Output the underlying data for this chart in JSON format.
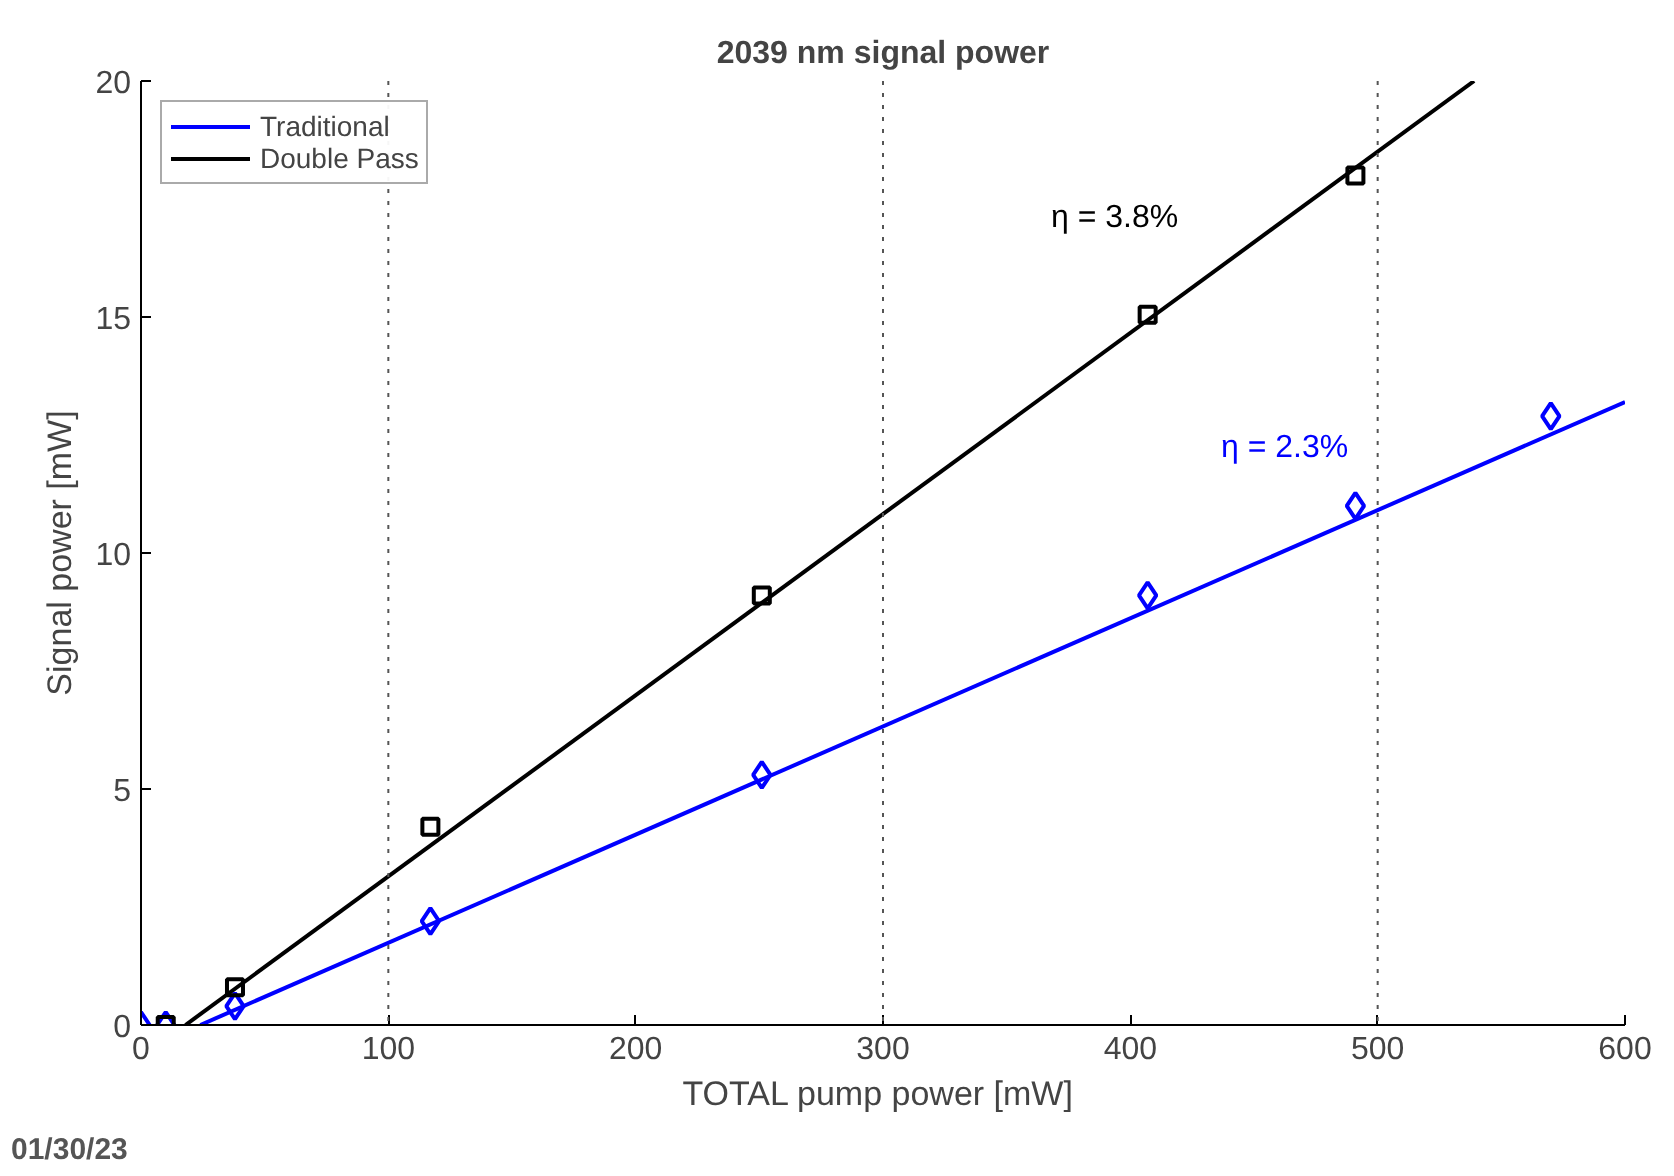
{
  "chart_data": {
    "type": "scatter",
    "title": "2039 nm signal power",
    "xlabel": "TOTAL pump power  [mW]",
    "ylabel": "Signal power [mW]",
    "xlim": [
      0,
      600
    ],
    "xticks": [
      0,
      100,
      200,
      300,
      400,
      500,
      600
    ],
    "ylim": [
      0,
      20
    ],
    "yticks": [
      0,
      5,
      10,
      15,
      20
    ],
    "grid": false,
    "legend": "top left",
    "series": [
      {
        "name": "Traditional",
        "type": "line",
        "color": "#0000ff",
        "marker": "none",
        "line_style": "solid",
        "x": [
          24,
          600
        ],
        "values": [
          0,
          13.2
        ]
      },
      {
        "name": "Double Pass",
        "type": "line",
        "color": "#000000",
        "marker": "none",
        "line_style": "solid",
        "x": [
          18,
          539
        ],
        "values": [
          0,
          20
        ]
      },
      {
        "color": "#0000ff",
        "marker": "diamond",
        "x": [
          0,
          10,
          38,
          117,
          251,
          407,
          491,
          570
        ],
        "values": [
          0,
          0,
          0.4,
          2.2,
          5.3,
          9.1,
          11.0,
          12.9
        ]
      },
      {
        "color": "#000000",
        "marker": "square",
        "x": [
          10,
          38,
          117,
          251,
          407,
          491
        ],
        "values": [
          0,
          0.8,
          4.2,
          9.1,
          15.05,
          18.0
        ]
      }
    ],
    "ref_lines": [
      {
        "axis": "x",
        "value": 100,
        "color": "#555555",
        "line_style": "dotted"
      },
      {
        "axis": "x",
        "value": 300,
        "color": "#555555",
        "line_style": "dotted"
      },
      {
        "axis": "x",
        "value": 500,
        "color": "#555555",
        "line_style": "dotted"
      }
    ],
    "annotations": [
      "η = 3.8%",
      "η = 2.3%",
      "01/30/23"
    ]
  }
}
